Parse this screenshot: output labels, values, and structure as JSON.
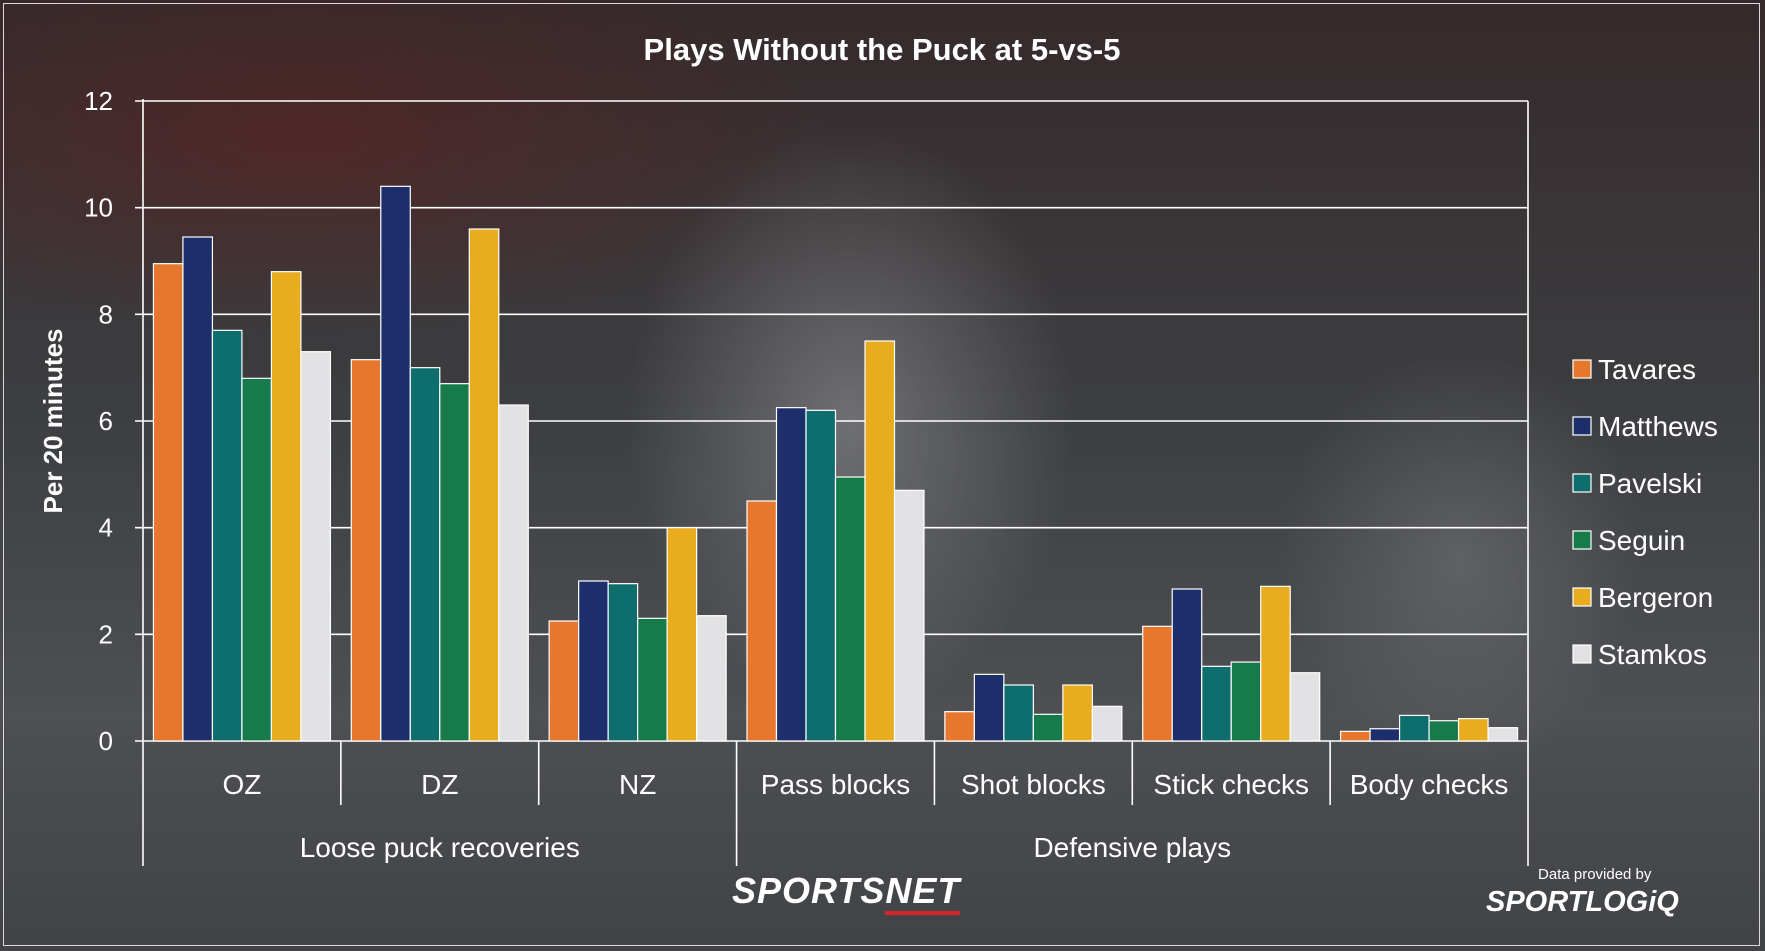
{
  "chart_data": {
    "type": "bar",
    "title": "Plays Without the Puck at 5-vs-5",
    "ylabel": "Per 20 minutes",
    "ylim": [
      0,
      12
    ],
    "yticks": [
      0,
      2,
      4,
      6,
      8,
      10,
      12
    ],
    "grid": true,
    "legend_position": "right",
    "categories": [
      "OZ",
      "DZ",
      "NZ",
      "Pass blocks",
      "Shot blocks",
      "Stick checks",
      "Body checks"
    ],
    "groups": [
      {
        "label": "Loose puck recoveries",
        "categories": [
          "OZ",
          "DZ",
          "NZ"
        ]
      },
      {
        "label": "Defensive plays",
        "categories": [
          "Pass blocks",
          "Shot blocks",
          "Stick checks",
          "Body checks"
        ]
      }
    ],
    "series": [
      {
        "name": "Tavares",
        "color": "#e8772e",
        "values": [
          8.95,
          7.15,
          2.25,
          4.5,
          0.55,
          2.15,
          0.18
        ]
      },
      {
        "name": "Matthews",
        "color": "#1c2f6b",
        "values": [
          9.45,
          10.4,
          3.0,
          6.25,
          1.25,
          2.85,
          0.23
        ]
      },
      {
        "name": "Pavelski",
        "color": "#0e6e6e",
        "values": [
          7.7,
          7.0,
          2.95,
          6.2,
          1.05,
          1.4,
          0.48
        ]
      },
      {
        "name": "Seguin",
        "color": "#167a4a",
        "values": [
          6.8,
          6.7,
          2.3,
          4.95,
          0.5,
          1.48,
          0.38
        ]
      },
      {
        "name": "Bergeron",
        "color": "#e8ac1e",
        "values": [
          8.8,
          9.6,
          4.0,
          7.5,
          1.05,
          2.9,
          0.42
        ]
      },
      {
        "name": "Stamkos",
        "color": "#e2e2e4",
        "values": [
          7.3,
          6.3,
          2.35,
          4.7,
          0.65,
          1.28,
          0.25
        ]
      }
    ]
  },
  "branding": {
    "sportsnet_prefix": "SPORTS",
    "sportsnet_suffix": "NET",
    "provider_caption": "Data provided by",
    "provider_name": "SPORTLOGiQ"
  }
}
